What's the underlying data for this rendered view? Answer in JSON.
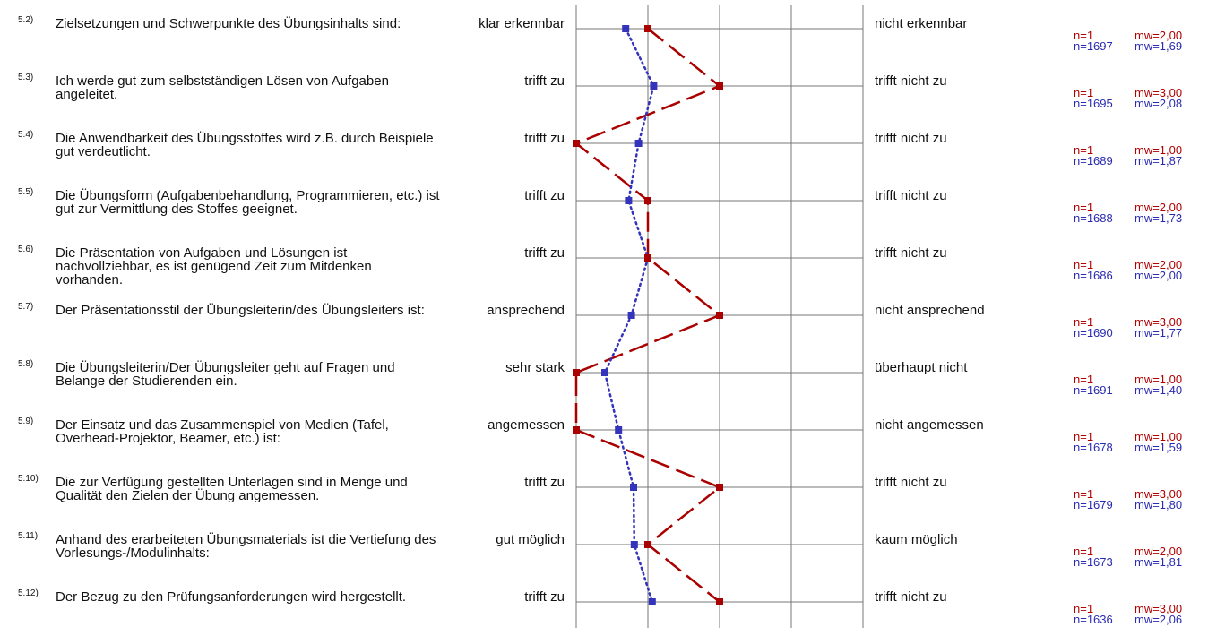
{
  "legend": {
    "series_a_color": "#aa0000",
    "series_b_color": "#3333bb"
  },
  "chart_data": {
    "type": "line",
    "scale": [
      1,
      5
    ],
    "series": [
      {
        "color": "#aa0000",
        "style": "dashed",
        "values": [
          2.0,
          3.0,
          1.0,
          2.0,
          2.0,
          3.0,
          1.0,
          1.0,
          3.0,
          2.0,
          3.0
        ]
      },
      {
        "color": "#3333bb",
        "style": "dotted",
        "values": [
          1.69,
          2.08,
          1.87,
          1.73,
          2.0,
          1.77,
          1.4,
          1.59,
          1.8,
          1.81,
          2.06
        ]
      }
    ]
  },
  "items": [
    {
      "num": "5.2)",
      "text": "Zielsetzungen und Schwerpunkte des Übungsinhalts sind:",
      "left": "klar erkennbar",
      "right": "nicht erkennbar",
      "n1": "n=1",
      "mw1": "mw=2,00",
      "n2": "n=1697",
      "mw2": "mw=1,69"
    },
    {
      "num": "5.3)",
      "text": "Ich werde gut zum selbstständigen Lösen von Aufgaben angeleitet.",
      "left": "trifft zu",
      "right": "trifft nicht zu",
      "n1": "n=1",
      "mw1": "mw=3,00",
      "n2": "n=1695",
      "mw2": "mw=2,08"
    },
    {
      "num": "5.4)",
      "text": "Die Anwendbarkeit des Übungsstoffes wird z.B. durch Beispiele gut verdeutlicht.",
      "left": "trifft zu",
      "right": "trifft nicht zu",
      "n1": "n=1",
      "mw1": "mw=1,00",
      "n2": "n=1689",
      "mw2": "mw=1,87"
    },
    {
      "num": "5.5)",
      "text": "Die Übungsform (Aufgabenbehandlung, Programmieren, etc.) ist gut zur Vermittlung des Stoffes geeignet.",
      "left": "trifft zu",
      "right": "trifft nicht zu",
      "n1": "n=1",
      "mw1": "mw=2,00",
      "n2": "n=1688",
      "mw2": "mw=1,73"
    },
    {
      "num": "5.6)",
      "text": "Die Präsentation von Aufgaben und Lösungen ist nachvollziehbar, es ist genügend Zeit zum Mitdenken vorhanden.",
      "left": "trifft zu",
      "right": "trifft nicht zu",
      "n1": "n=1",
      "mw1": "mw=2,00",
      "n2": "n=1686",
      "mw2": "mw=2,00"
    },
    {
      "num": "5.7)",
      "text": "Der Präsentationsstil der Übungsleiterin/des Übungsleiters ist:",
      "left": "ansprechend",
      "right": "nicht ansprechend",
      "n1": "n=1",
      "mw1": "mw=3,00",
      "n2": "n=1690",
      "mw2": "mw=1,77"
    },
    {
      "num": "5.8)",
      "text": "Die Übungsleiterin/Der Übungsleiter geht auf Fragen und Belange der Studierenden ein.",
      "left": "sehr stark",
      "right": "überhaupt nicht",
      "n1": "n=1",
      "mw1": "mw=1,00",
      "n2": "n=1691",
      "mw2": "mw=1,40"
    },
    {
      "num": "5.9)",
      "text": "Der Einsatz und das Zusammenspiel von Medien (Tafel, Overhead-Projektor, Beamer, etc.) ist:",
      "left": "angemessen",
      "right": "nicht angemessen",
      "n1": "n=1",
      "mw1": "mw=1,00",
      "n2": "n=1678",
      "mw2": "mw=1,59"
    },
    {
      "num": "5.10)",
      "text": "Die zur Verfügung gestellten Unterlagen sind in Menge und Qualität den Zielen der Übung angemessen.",
      "left": "trifft zu",
      "right": "trifft nicht zu",
      "n1": "n=1",
      "mw1": "mw=3,00",
      "n2": "n=1679",
      "mw2": "mw=1,80"
    },
    {
      "num": "5.11)",
      "text": "Anhand des erarbeiteten Übungsmaterials ist die Vertiefung des Vorlesungs-/Modulinhalts:",
      "left": "gut möglich",
      "right": "kaum möglich",
      "n1": "n=1",
      "mw1": "mw=2,00",
      "n2": "n=1673",
      "mw2": "mw=1,81"
    },
    {
      "num": "5.12)",
      "text": "Der Bezug zu den Prüfungsanforderungen wird hergestellt.",
      "left": "trifft zu",
      "right": "trifft nicht zu",
      "n1": "n=1",
      "mw1": "mw=3,00",
      "n2": "n=1636",
      "mw2": "mw=2,06"
    }
  ]
}
